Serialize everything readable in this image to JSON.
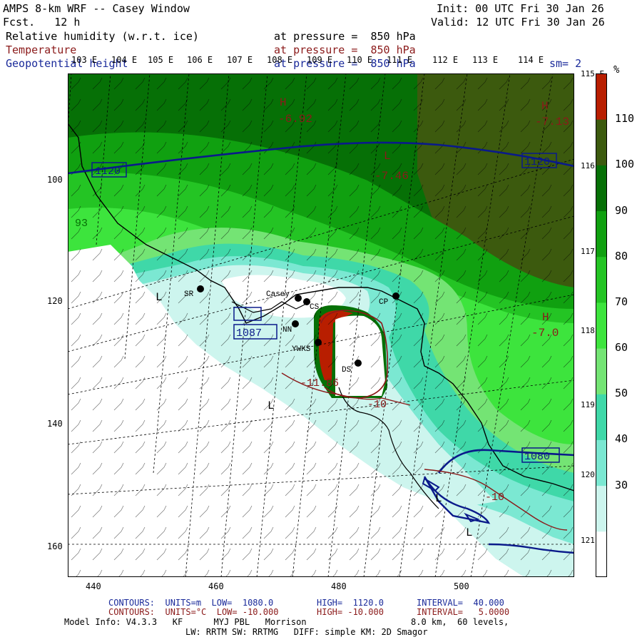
{
  "header": {
    "model_title": "AMPS 8-km WRF -- Casey Window",
    "forecast": "Fcst.   12 h",
    "init": "Init: 00 UTC Fri 30 Jan 26",
    "valid": "Valid: 12 UTC Fri 30 Jan 26",
    "field1_name": "Relative humidity (w.r.t. ice)",
    "field1_level": "at pressure =  850 hPa",
    "field2_name": "Temperature",
    "field2_level": "at pressure =  850 hPa",
    "field3_name": "Geopotential height",
    "field3_level": "at pressure =  850 hPa",
    "smoothing": "sm= 2"
  },
  "top_lon_labels": [
    "103 E",
    "104 E",
    "105 E",
    "106 E",
    "107 E",
    "108 E",
    "109 E",
    "110 E",
    "111 E",
    "112 E",
    "113 E",
    "114 E"
  ],
  "right_lon_labels": [
    "115 E",
    "116 E",
    "117 E",
    "118 E",
    "119 E",
    "120 E",
    "121 E"
  ],
  "axis": {
    "x_ticks": [
      "440",
      "460",
      "480",
      "500"
    ],
    "y_ticks": [
      "100",
      "120",
      "140",
      "160"
    ]
  },
  "colorbar": {
    "unit": "%",
    "tick_labels": [
      "110",
      "100",
      "90",
      "80",
      "70",
      "60",
      "50",
      "40",
      "30"
    ],
    "colors": [
      "#ffffff",
      "#cdf5ee",
      "#7be8d2",
      "#3fd8a8",
      "#74e474",
      "#3de43d",
      "#24c424",
      "#10a010",
      "#067006",
      "#3c5a0e",
      "#b81e00"
    ]
  },
  "map_labels": {
    "height_1120_left": "1120",
    "height_1120_right": "1120",
    "height_1087": "1087",
    "height_1080": "1080",
    "temp_692": "-6.92",
    "temp_746": "-7.46",
    "temp_713": "-7.13",
    "temp_70": "-7.0",
    "temp_1186": "-11.86",
    "temp_m10": "-10",
    "temp_p10": "-10",
    "label_93": "93",
    "H1": "H",
    "H2": "H",
    "H3": "H",
    "L1": "L",
    "L2": "L",
    "L3": "L",
    "L4": "L",
    "L5": "L",
    "stations": {
      "SR": "SR",
      "Casey": "Casey",
      "CS": "CS",
      "CP": "CP",
      "NN": "NN",
      "YWKS": "YWKS",
      "DS": "DS"
    }
  },
  "footer": {
    "line1_a": "CONTOURS:  UNITS=m  LOW=  1080.0",
    "line1_b": "HIGH=  1120.0",
    "line1_c": "INTERVAL=  40.000",
    "line2_a": "CONTOURS:  UNITS=°C  LOW= -10.000",
    "line2_b": "HIGH= -10.000",
    "line2_c": "INTERVAL=   5.0000",
    "line3_a": "Model Info: V4.3.3   KF      MYJ PBL   Morrison",
    "line3_b": "8.0 km,  60 levels,",
    "line4": "LW: RRTM SW: RRTMG   DIFF: simple KM: 2D Smagor"
  }
}
